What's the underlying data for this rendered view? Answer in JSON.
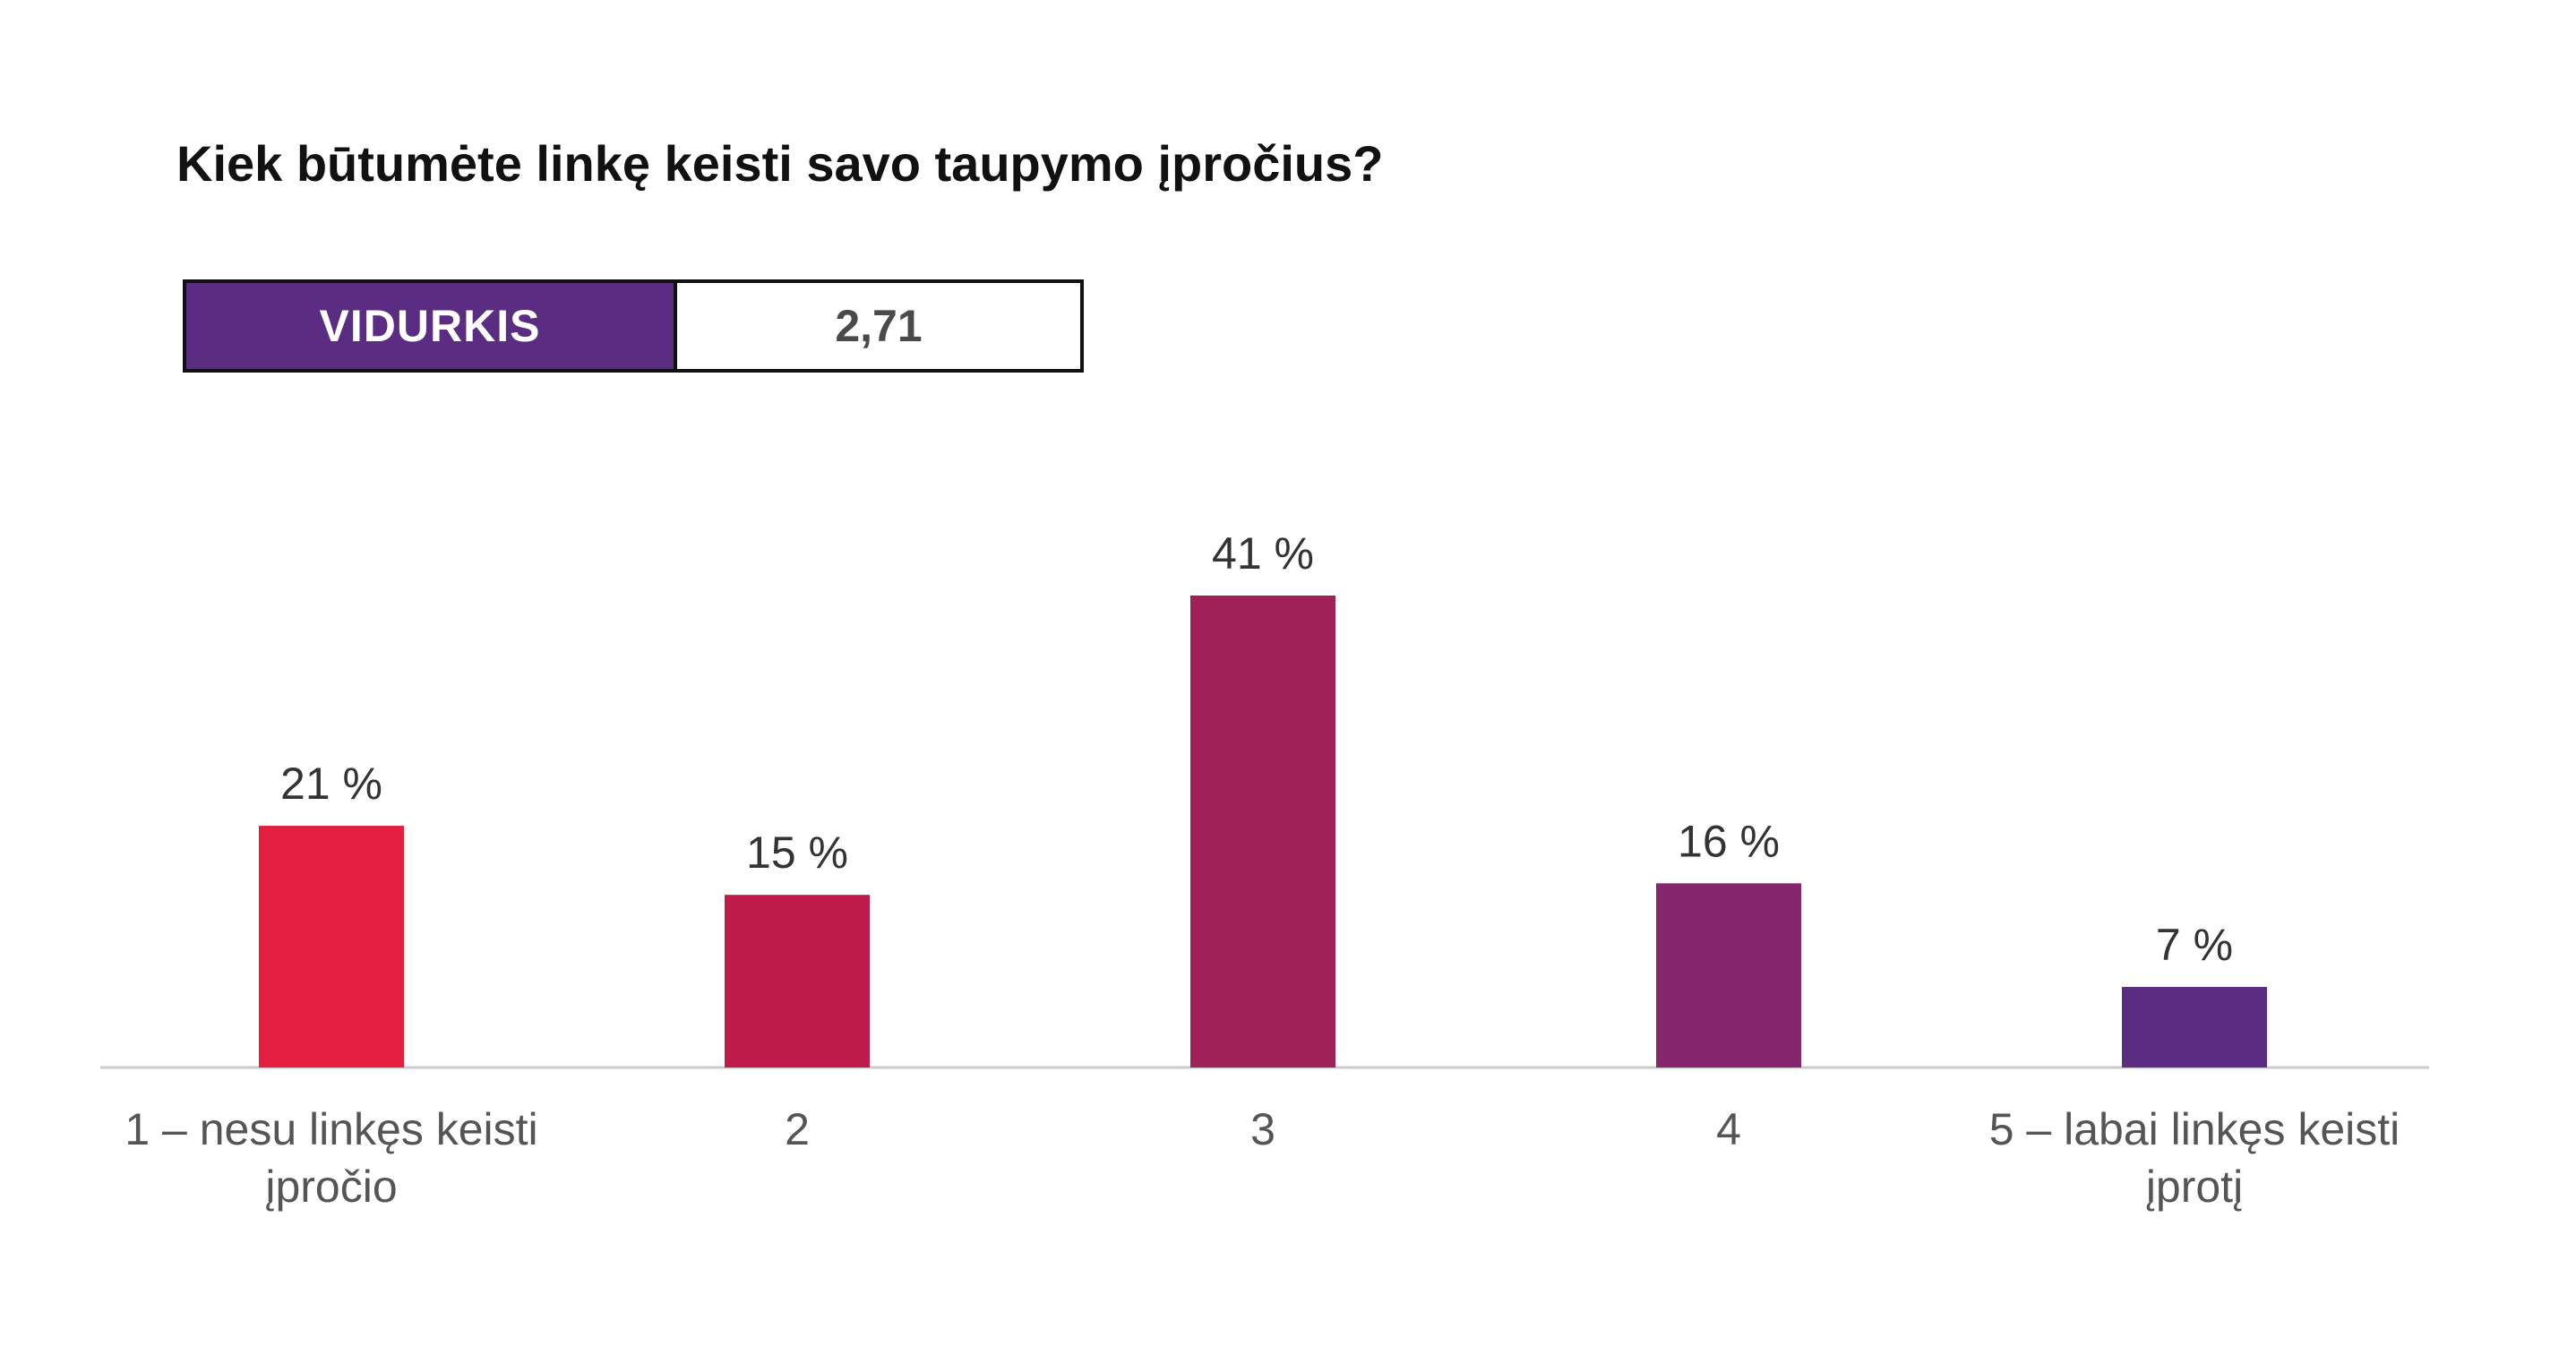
{
  "header": {
    "title": "Kiek būtumėte linkę keisti savo taupymo įpročius?"
  },
  "average": {
    "label": "VIDURKIS",
    "value": "2,71"
  },
  "colors": {
    "average_label_bg": "#5a2d82",
    "axis_line": "#cccccc"
  },
  "chart_data": {
    "type": "bar",
    "categories": [
      [
        "1 – nesu linkęs keisti",
        "įpročio"
      ],
      [
        "2"
      ],
      [
        "3"
      ],
      [
        "4"
      ],
      [
        "5 – labai linkęs keisti",
        "įprotį"
      ]
    ],
    "values": [
      21,
      15,
      41,
      16,
      7
    ],
    "value_labels": [
      "21 %",
      "15 %",
      "41 %",
      "16 %",
      "7 %"
    ],
    "bar_colors": [
      "#e31e3f",
      "#be1b4a",
      "#9e2258",
      "#86276e",
      "#5a2d82"
    ],
    "ylim": [
      0,
      41
    ],
    "grid": false,
    "legend": "none"
  }
}
